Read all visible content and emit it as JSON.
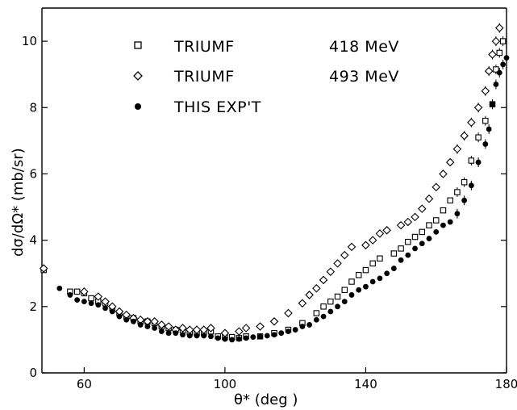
{
  "chart_data": {
    "type": "scatter",
    "title": "",
    "xlabel": "θ*  (deg )",
    "ylabel": "dσ/dΩ*  (mb/sr)",
    "xlim": [
      48,
      180
    ],
    "ylim": [
      0,
      11
    ],
    "x_ticks": [
      60,
      100,
      140,
      180
    ],
    "y_ticks": [
      0,
      2,
      4,
      6,
      8,
      10
    ],
    "grid": false,
    "legend_position": "upper-left",
    "series": [
      {
        "name": "TRIUMF",
        "legend_energy": "418 MeV",
        "marker": "open-square",
        "points": [
          [
            48.5,
            3.1
          ],
          [
            56,
            2.45
          ],
          [
            58,
            2.45
          ],
          [
            60,
            2.4
          ],
          [
            62,
            2.25
          ],
          [
            64,
            2.15
          ],
          [
            66,
            2.1
          ],
          [
            68,
            1.95
          ],
          [
            70,
            1.8
          ],
          [
            72,
            1.7
          ],
          [
            74,
            1.65
          ],
          [
            76,
            1.55
          ],
          [
            78,
            1.55
          ],
          [
            80,
            1.5
          ],
          [
            82,
            1.4
          ],
          [
            84,
            1.35
          ],
          [
            86,
            1.3
          ],
          [
            88,
            1.28
          ],
          [
            90,
            1.22
          ],
          [
            92,
            1.2
          ],
          [
            94,
            1.2
          ],
          [
            96,
            1.25
          ],
          [
            98,
            1.1
          ],
          [
            100,
            1.08
          ],
          [
            102,
            1.08
          ],
          [
            104,
            1.05
          ],
          [
            106,
            1.1
          ],
          [
            110,
            1.1
          ],
          [
            114,
            1.2
          ],
          [
            118,
            1.3
          ],
          [
            122,
            1.5
          ],
          [
            126,
            1.8
          ],
          [
            128,
            2.0
          ],
          [
            130,
            2.15
          ],
          [
            132,
            2.3
          ],
          [
            134,
            2.5
          ],
          [
            136,
            2.75
          ],
          [
            138,
            2.95
          ],
          [
            140,
            3.1
          ],
          [
            142,
            3.3
          ],
          [
            144,
            3.45
          ],
          [
            148,
            3.6
          ],
          [
            150,
            3.75
          ],
          [
            152,
            3.95
          ],
          [
            154,
            4.1
          ],
          [
            156,
            4.25
          ],
          [
            158,
            4.45
          ],
          [
            160,
            4.6
          ],
          [
            162,
            4.9
          ],
          [
            164,
            5.2
          ],
          [
            166,
            5.45
          ],
          [
            168,
            5.75
          ],
          [
            170,
            6.4
          ],
          [
            172,
            7.1
          ],
          [
            174,
            7.6
          ],
          [
            176,
            8.1
          ],
          [
            177,
            9.15
          ],
          [
            178,
            9.65
          ],
          [
            179,
            10.0
          ]
        ]
      },
      {
        "name": "TRIUMF",
        "legend_energy": "493 MeV",
        "marker": "open-diamond",
        "points": [
          [
            48.5,
            3.15
          ],
          [
            60,
            2.45
          ],
          [
            64,
            2.3
          ],
          [
            66,
            2.15
          ],
          [
            68,
            2.0
          ],
          [
            70,
            1.85
          ],
          [
            72,
            1.75
          ],
          [
            74,
            1.65
          ],
          [
            76,
            1.6
          ],
          [
            78,
            1.55
          ],
          [
            80,
            1.55
          ],
          [
            82,
            1.45
          ],
          [
            84,
            1.4
          ],
          [
            86,
            1.3
          ],
          [
            88,
            1.35
          ],
          [
            90,
            1.3
          ],
          [
            92,
            1.3
          ],
          [
            94,
            1.3
          ],
          [
            96,
            1.35
          ],
          [
            100,
            1.2
          ],
          [
            104,
            1.25
          ],
          [
            106,
            1.35
          ],
          [
            110,
            1.4
          ],
          [
            114,
            1.55
          ],
          [
            118,
            1.8
          ],
          [
            122,
            2.1
          ],
          [
            124,
            2.35
          ],
          [
            126,
            2.55
          ],
          [
            128,
            2.8
          ],
          [
            130,
            3.05
          ],
          [
            132,
            3.3
          ],
          [
            134,
            3.55
          ],
          [
            136,
            3.8
          ],
          [
            140,
            3.85
          ],
          [
            142,
            4.0
          ],
          [
            144,
            4.2
          ],
          [
            146,
            4.3
          ],
          [
            150,
            4.45
          ],
          [
            152,
            4.55
          ],
          [
            154,
            4.7
          ],
          [
            156,
            4.95
          ],
          [
            158,
            5.25
          ],
          [
            160,
            5.6
          ],
          [
            162,
            6.0
          ],
          [
            164,
            6.35
          ],
          [
            166,
            6.75
          ],
          [
            168,
            7.15
          ],
          [
            170,
            7.55
          ],
          [
            172,
            8.0
          ],
          [
            174,
            8.5
          ],
          [
            175,
            9.1
          ],
          [
            176,
            9.6
          ],
          [
            177,
            10.0
          ],
          [
            178,
            10.4
          ]
        ]
      },
      {
        "name": "THIS EXP'T",
        "marker": "filled-circle",
        "points": [
          [
            53,
            2.55
          ],
          [
            56,
            2.35
          ],
          [
            58,
            2.2
          ],
          [
            60,
            2.15
          ],
          [
            62,
            2.1
          ],
          [
            64,
            2.05
          ],
          [
            66,
            1.95
          ],
          [
            68,
            1.85
          ],
          [
            70,
            1.7
          ],
          [
            72,
            1.6
          ],
          [
            74,
            1.55
          ],
          [
            76,
            1.45
          ],
          [
            78,
            1.4
          ],
          [
            80,
            1.35
          ],
          [
            82,
            1.25
          ],
          [
            84,
            1.2
          ],
          [
            86,
            1.2
          ],
          [
            88,
            1.15
          ],
          [
            90,
            1.12
          ],
          [
            92,
            1.12
          ],
          [
            94,
            1.12
          ],
          [
            96,
            1.1
          ],
          [
            98,
            1.05
          ],
          [
            100,
            1.02
          ],
          [
            102,
            1.0
          ],
          [
            104,
            1.02
          ],
          [
            106,
            1.05
          ],
          [
            108,
            1.08
          ],
          [
            110,
            1.1
          ],
          [
            112,
            1.12
          ],
          [
            114,
            1.15
          ],
          [
            116,
            1.2
          ],
          [
            118,
            1.25
          ],
          [
            120,
            1.3
          ],
          [
            122,
            1.4
          ],
          [
            124,
            1.45
          ],
          [
            126,
            1.6
          ],
          [
            128,
            1.7
          ],
          [
            130,
            1.85
          ],
          [
            132,
            2.0
          ],
          [
            134,
            2.15
          ],
          [
            136,
            2.35
          ],
          [
            138,
            2.5
          ],
          [
            140,
            2.6
          ],
          [
            142,
            2.75
          ],
          [
            144,
            2.85
          ],
          [
            146,
            3.0
          ],
          [
            148,
            3.15
          ],
          [
            150,
            3.4
          ],
          [
            152,
            3.55
          ],
          [
            154,
            3.75
          ],
          [
            156,
            3.9
          ],
          [
            158,
            4.05
          ],
          [
            160,
            4.25
          ],
          [
            162,
            4.45
          ],
          [
            164,
            4.55
          ],
          [
            166,
            4.8
          ],
          [
            168,
            5.2
          ],
          [
            170,
            5.65
          ],
          [
            172,
            6.35
          ],
          [
            174,
            6.9
          ],
          [
            175,
            7.35
          ],
          [
            176,
            8.1
          ],
          [
            177,
            8.7
          ],
          [
            178,
            9.05
          ],
          [
            179,
            9.3
          ],
          [
            180,
            9.5
          ]
        ]
      }
    ]
  }
}
